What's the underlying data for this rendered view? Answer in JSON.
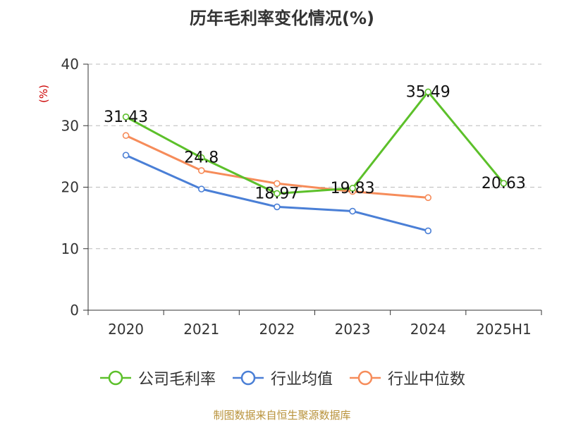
{
  "chart_data": {
    "type": "line",
    "title": "历年毛利率变化情况(%)",
    "ylabel": "(%)",
    "xlabel": "",
    "categories": [
      "2020",
      "2021",
      "2022",
      "2023",
      "2024",
      "2025H1"
    ],
    "ylim": [
      0,
      40
    ],
    "yticks": [
      0,
      10,
      20,
      30,
      40
    ],
    "grid": true,
    "legend_position": "bottom",
    "series": [
      {
        "name": "公司毛利率",
        "color": "#5cc02a",
        "values": [
          31.43,
          24.8,
          18.97,
          19.83,
          35.49,
          20.63
        ],
        "labels": [
          "31.43",
          "24.8",
          "18.97",
          "19.83",
          "35.49",
          "20.63"
        ]
      },
      {
        "name": "行业均值",
        "color": "#4a7fd6",
        "values": [
          25.2,
          19.7,
          16.8,
          16.1,
          12.9,
          null
        ]
      },
      {
        "name": "行业中位数",
        "color": "#f68c5a",
        "values": [
          28.4,
          22.7,
          20.6,
          19.3,
          18.3,
          null
        ]
      }
    ]
  },
  "source": "制图数据来自恒生聚源数据库"
}
